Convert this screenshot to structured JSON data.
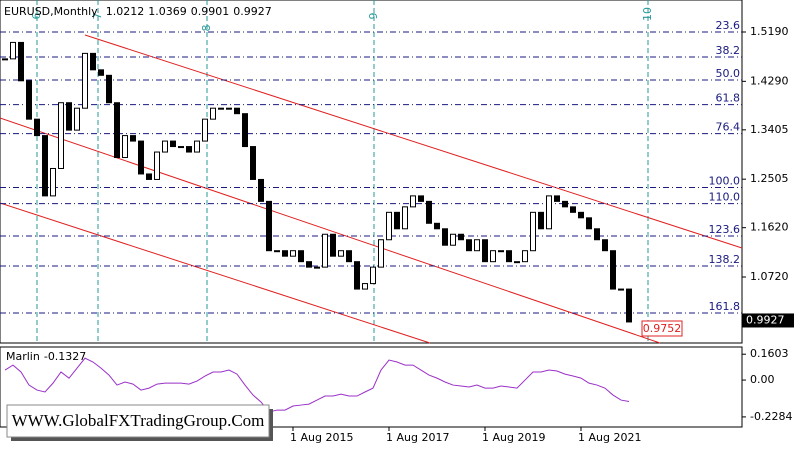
{
  "chart_data": [
    {
      "type": "candlestick",
      "title": "EURUSD,Monthly",
      "header_values": [
        1.0212,
        1.0369,
        0.9901,
        0.9927
      ],
      "last_price": 0.9927,
      "target_label": "0.9752",
      "cycle_labels": [
        "6",
        "7",
        "8",
        "9",
        "10"
      ],
      "categories": [
        null,
        null,
        null,
        null,
        null,
        null,
        null,
        null,
        null,
        null,
        null,
        null,
        null,
        null,
        null,
        null,
        null,
        null,
        null,
        null,
        null,
        null,
        null,
        null,
        null,
        null,
        null,
        null,
        null,
        null,
        null,
        null,
        null,
        null,
        null,
        null,
        "1 Aug 2015",
        null,
        null,
        null,
        null,
        null,
        null,
        null,
        null,
        null,
        null,
        null,
        "1 Aug 2017",
        null,
        null,
        null,
        null,
        null,
        null,
        null,
        null,
        null,
        null,
        null,
        "1 Aug 2019",
        null,
        null,
        null,
        null,
        null,
        null,
        null,
        null,
        null,
        null,
        null,
        "1 Aug 2021",
        null,
        null,
        null,
        null,
        null,
        null
      ],
      "values": [
        1.47,
        1.5,
        1.43,
        1.36,
        1.33,
        1.22,
        1.27,
        1.39,
        1.34,
        1.38,
        1.48,
        1.45,
        1.44,
        1.39,
        1.29,
        1.33,
        1.32,
        1.26,
        1.25,
        1.3,
        1.32,
        1.31,
        1.31,
        1.3,
        1.32,
        1.36,
        1.38,
        1.38,
        1.38,
        1.37,
        1.31,
        1.25,
        1.21,
        1.12,
        1.12,
        1.11,
        1.12,
        1.1,
        1.09,
        1.09,
        1.15,
        1.11,
        1.12,
        1.1,
        1.05,
        1.06,
        1.09,
        1.14,
        1.19,
        1.16,
        1.2,
        1.22,
        1.21,
        1.17,
        1.16,
        1.13,
        1.15,
        1.14,
        1.12,
        1.14,
        1.1,
        1.12,
        1.12,
        1.1,
        1.1,
        1.12,
        1.19,
        1.16,
        1.22,
        1.21,
        1.2,
        1.19,
        1.18,
        1.16,
        1.14,
        1.12,
        1.05,
        1.05,
        0.99
      ],
      "ylim": [
        0.9516,
        1.5774
      ],
      "yticks": [
        {
          "value": 1.519,
          "label": "1.5190"
        },
        {
          "value": 1.429,
          "label": "1.4290"
        },
        1.3405,
        1.2505,
        {
          "value": 1.162,
          "label": "1.1620"
        },
        {
          "value": 1.072,
          "label": "1.0720"
        }
      ],
      "levels": [
        {
          "label": "23.6",
          "value": 1.519
        },
        {
          "label": "38.2",
          "value": 1.4734
        },
        {
          "label": "50.0",
          "value": 1.4314
        },
        {
          "label": "61.8",
          "value": 1.3866
        },
        {
          "label": "76.4",
          "value": 1.3337
        },
        {
          "label": "100.0",
          "value": 1.2352
        },
        {
          "label": "110.0",
          "value": 1.206
        },
        {
          "label": "123.6",
          "value": 1.1468
        },
        {
          "label": "138.2",
          "value": 1.0921
        },
        {
          "label": "161.8",
          "value": 1.0063
        }
      ]
    },
    {
      "type": "line",
      "title": "Marlin",
      "last_value": -0.1327,
      "color": "#9b30c8",
      "values": [
        0.062,
        0.093,
        0.05,
        -0.031,
        -0.062,
        -0.074,
        -0.019,
        0.05,
        0.012,
        0.074,
        0.136,
        0.112,
        0.074,
        0.031,
        -0.031,
        -0.012,
        -0.025,
        -0.062,
        -0.05,
        -0.025,
        -0.019,
        -0.019,
        -0.019,
        -0.025,
        -0.006,
        0.025,
        0.05,
        0.05,
        0.062,
        0.037,
        -0.031,
        -0.093,
        -0.136,
        -0.198,
        -0.186,
        -0.186,
        -0.161,
        -0.155,
        -0.149,
        -0.124,
        -0.099,
        -0.099,
        -0.087,
        -0.099,
        -0.099,
        -0.074,
        -0.05,
        0.062,
        0.124,
        0.112,
        0.093,
        0.093,
        0.062,
        0.031,
        0.012,
        -0.012,
        -0.031,
        -0.037,
        -0.043,
        -0.031,
        -0.05,
        -0.05,
        -0.037,
        -0.043,
        -0.05,
        0.0,
        0.05,
        0.05,
        0.062,
        0.056,
        0.037,
        0.025,
        0.012,
        -0.019,
        -0.031,
        -0.05,
        -0.093,
        -0.124,
        -0.133
      ],
      "ylim": [
        -0.291,
        0.205
      ],
      "yticks": [
        0.1603,
        {
          "value": 0,
          "label": "0.00"
        },
        -0.2284
      ]
    }
  ],
  "watermark": "WWW.GlobalFXTradingGroup.Com"
}
